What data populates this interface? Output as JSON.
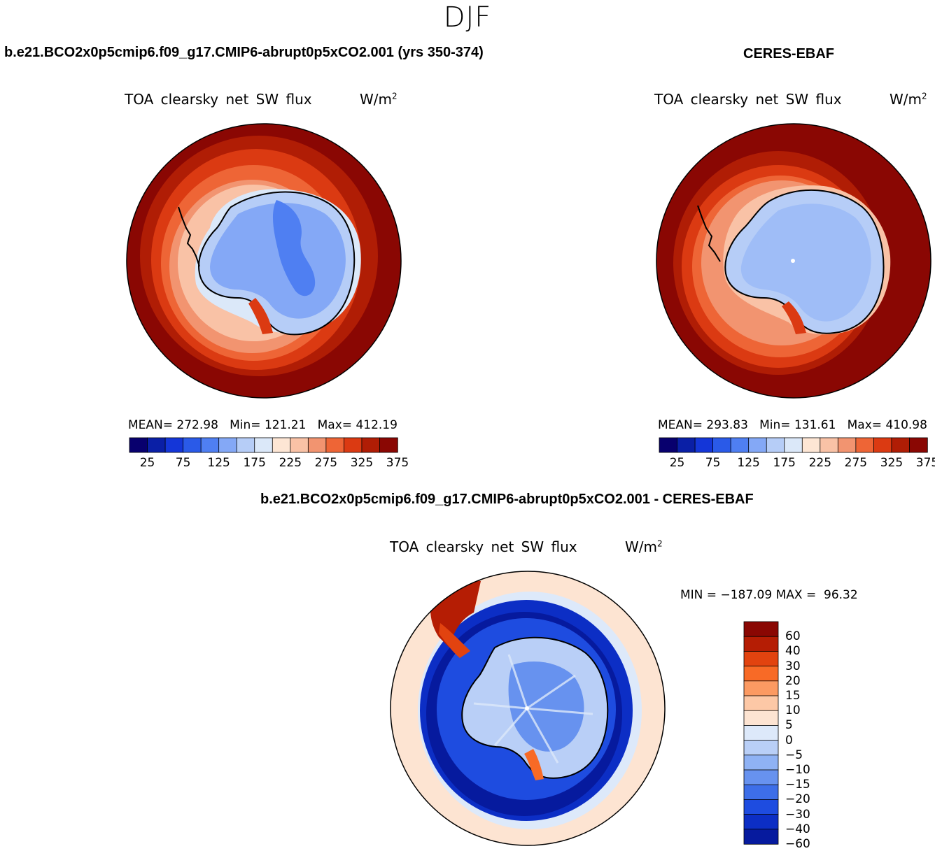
{
  "figure": {
    "season": "DJF"
  },
  "panels": [
    {
      "id": "model",
      "header": "b.e21.BCO2x0p5cmip6.f09_g17.CMIP6-abrupt0p5xCO2.001 (yrs 350-374)",
      "plot_title": "TOA clearsky net SW flux",
      "units": "W/m",
      "units_exp": "2",
      "mean_label": "MEAN=",
      "mean": "272.98",
      "min_label": "Min=",
      "min": "121.21",
      "max_label": "Max=",
      "max": "412.19"
    },
    {
      "id": "obs",
      "header": "CERES-EBAF",
      "plot_title": "TOA clearsky net SW flux",
      "units": "W/m",
      "units_exp": "2",
      "mean_label": "MEAN=",
      "mean": "293.83",
      "min_label": "Min=",
      "min": "131.61",
      "max_label": "Max=",
      "max": "410.98"
    },
    {
      "id": "diff",
      "header": "b.e21.BCO2x0p5cmip6.f09_g17.CMIP6-abrupt0p5xCO2.001 - CERES-EBAF",
      "plot_title": "TOA clearsky net SW flux",
      "units": "W/m",
      "units_exp": "2",
      "min_label": "MIN =",
      "min": "−187.09",
      "max_label": "MAX =",
      "max": "96.32"
    }
  ],
  "abs_colorbar": {
    "colors": [
      "#08006e",
      "#0a1fa6",
      "#1436d8",
      "#2a5ae8",
      "#4f7ff2",
      "#84a8f6",
      "#b6cdf7",
      "#dbe8f9",
      "#fde6d4",
      "#f9c2a6",
      "#f29470",
      "#ee6536",
      "#db3a12",
      "#b01d05",
      "#8a0703"
    ],
    "tick_labels": [
      "25",
      "75",
      "125",
      "175",
      "225",
      "275",
      "325",
      "375"
    ]
  },
  "diff_colorbar": {
    "colors": [
      "#8a0703",
      "#b51d04",
      "#e2430f",
      "#f86a26",
      "#fc9a62",
      "#fdc8a6",
      "#fde4d2",
      "#dde9fa",
      "#b9cff7",
      "#8fb2f4",
      "#6792ef",
      "#3d6ee8",
      "#1e4ce0",
      "#0c2ec5",
      "#061a9e"
    ],
    "tick_labels": [
      "60",
      "40",
      "30",
      "20",
      "15",
      "10",
      "5",
      "0",
      "−5",
      "−10",
      "−15",
      "−20",
      "−30",
      "−40",
      "−60"
    ]
  },
  "map_colors": {
    "dark_red": "#8a0703",
    "red": "#b01d05",
    "orange_red": "#db3a12",
    "orange": "#ee6536",
    "salmon": "#f29470",
    "light_salmon": "#f9c2a6",
    "peach": "#fde6d4",
    "pale_blue": "#dbe8f9",
    "light_blue": "#b6cdf7",
    "mid_blue": "#84a8f6",
    "blue": "#4f7ff2",
    "deep_blue": "#0a1fa6",
    "navy": "#08006e"
  }
}
